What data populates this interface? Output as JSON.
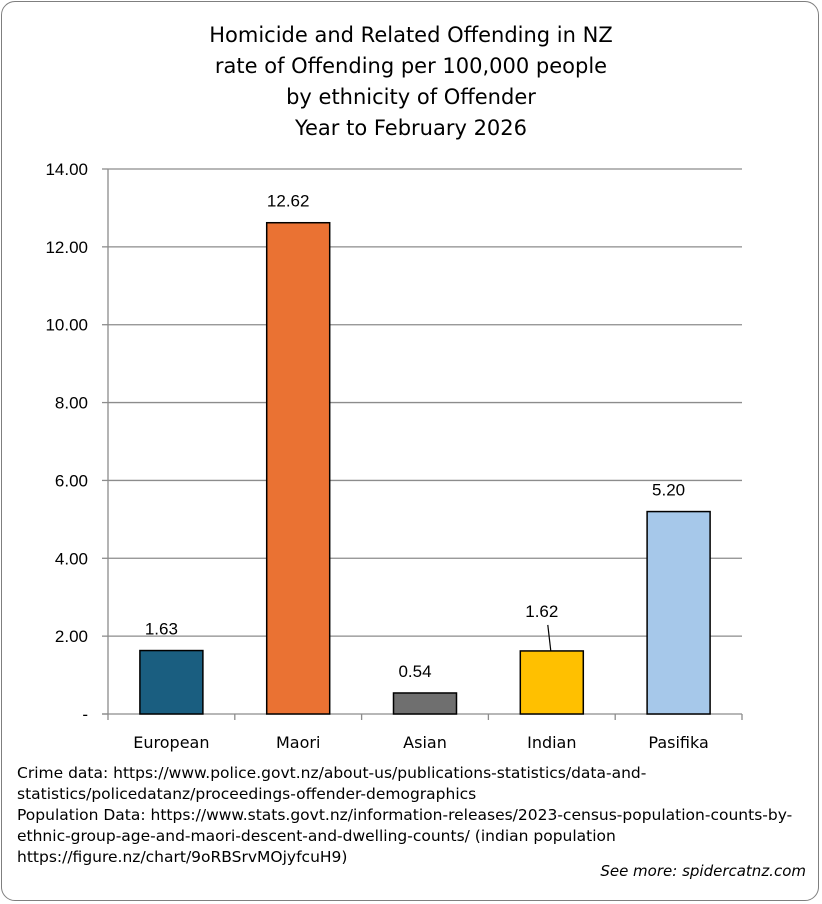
{
  "chart_data": {
    "type": "bar",
    "title_lines": [
      "Homicide and Related Offending in NZ",
      "rate of Offending per 100,000 people",
      "by ethnicity of Offender",
      "Year to February 2026"
    ],
    "categories": [
      "European",
      "Maori",
      "Asian",
      "Indian",
      "Pasifika"
    ],
    "values": [
      1.63,
      12.62,
      0.54,
      1.62,
      5.2
    ],
    "data_labels": [
      "1.63",
      "12.62",
      "0.54",
      "1.62",
      "5.20"
    ],
    "colors": [
      "#1a5e80",
      "#ea7233",
      "#6f6f6f",
      "#ffc000",
      "#a6c8ea"
    ],
    "ylim": [
      0,
      14
    ],
    "yticks": [
      0,
      2,
      4,
      6,
      8,
      10,
      12,
      14
    ],
    "ytick_labels": [
      "-",
      "2.00",
      "4.00",
      "6.00",
      "8.00",
      "10.00",
      "12.00",
      "14.00"
    ],
    "grid": true,
    "xlabel": "",
    "ylabel": ""
  },
  "source_notes": {
    "lines": [
      "Crime data: https://www.police.govt.nz/about-us/publications-statistics/data-and-",
      "statistics/policedatanz/proceedings-offender-demographics",
      "Population Data: https://www.stats.govt.nz/information-releases/2023-census-population-counts-by-",
      "ethnic-group-age-and-maori-descent-and-dwelling-counts/ (indian population",
      "https://figure.nz/chart/9oRBSrvMOjyfcuH9)"
    ],
    "see_more": "See more: spidercatnz.com"
  }
}
